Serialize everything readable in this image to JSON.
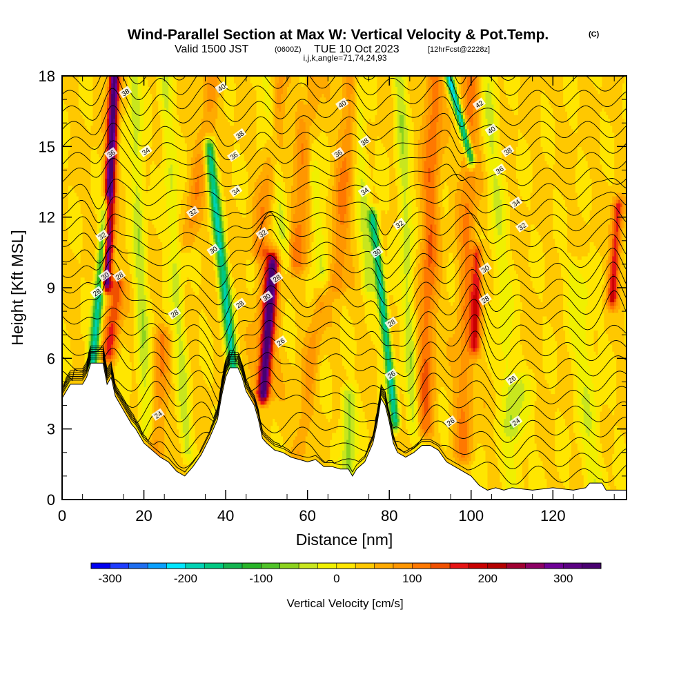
{
  "title": {
    "main": "Wind-Parallel Section at Max W: Vertical Velocity & Pot.Temp.",
    "copyright": "(C)",
    "valid_prefix": "Valid 1500 JST",
    "valid_utc": "(0600Z)",
    "valid_date": "TUE 10 Oct 2023",
    "forecast": "[12hrFcst@2228z]",
    "grid_info": "i,j,k,angle=71,74,24,93"
  },
  "colorbar": {
    "label": "Vertical Velocity [cm/s]",
    "min": -325,
    "max": 350,
    "step": 25,
    "tick_labels": [
      "-300",
      "-200",
      "-100",
      "0",
      "100",
      "200",
      "300"
    ],
    "tick_values": [
      -300,
      -200,
      -100,
      0,
      100,
      200,
      300
    ],
    "colors": [
      "#0000f0",
      "#1e3cff",
      "#1e6ef0",
      "#0aa0ff",
      "#00e6ff",
      "#00d2b4",
      "#00c882",
      "#14b450",
      "#28b428",
      "#50c328",
      "#8cd21e",
      "#c8e61e",
      "#f0f000",
      "#ffe600",
      "#ffc800",
      "#ffaa00",
      "#ff9600",
      "#ff7800",
      "#f05000",
      "#e61414",
      "#c80000",
      "#b40000",
      "#a00032",
      "#8c0064",
      "#6e0096",
      "#5a0082",
      "#480070"
    ]
  },
  "chart_data": {
    "type": "heatmap",
    "title": "Wind-Parallel Section at Max W: Vertical Velocity & Pot.Temp.",
    "xlabel": "Distance [nm]",
    "ylabel": "Height [Kft MSL]",
    "xlim": [
      0,
      138
    ],
    "ylim": [
      0,
      18
    ],
    "x_ticks": [
      0,
      20,
      40,
      60,
      80,
      100,
      120
    ],
    "x_tick_labels": [
      "0",
      "20",
      "40",
      "60",
      "80",
      "100",
      "120"
    ],
    "y_ticks": [
      0,
      3,
      6,
      9,
      12,
      15,
      18
    ],
    "y_tick_labels": [
      "0",
      "3",
      "6",
      "9",
      "12",
      "15",
      "18"
    ],
    "fill_variable": "Vertical Velocity [cm/s]",
    "contour_variable": "Pot.Temp.",
    "background_w": 30,
    "terrain": [
      [
        0,
        4.3
      ],
      [
        2,
        4.9
      ],
      [
        5,
        4.9
      ],
      [
        6,
        5.2
      ],
      [
        7,
        5.8
      ],
      [
        8,
        5.8
      ],
      [
        10,
        5.8
      ],
      [
        11,
        4.9
      ],
      [
        12,
        5.2
      ],
      [
        13,
        4.4
      ],
      [
        15,
        3.8
      ],
      [
        17,
        3.2
      ],
      [
        18,
        3.0
      ],
      [
        19,
        2.7
      ],
      [
        20,
        2.4
      ],
      [
        22,
        2.1
      ],
      [
        24,
        1.8
      ],
      [
        26,
        1.6
      ],
      [
        28,
        1.2
      ],
      [
        30,
        1.0
      ],
      [
        32,
        1.4
      ],
      [
        34,
        1.9
      ],
      [
        36,
        2.6
      ],
      [
        38,
        3.4
      ],
      [
        39,
        4.4
      ],
      [
        40,
        5.2
      ],
      [
        41,
        5.6
      ],
      [
        43,
        5.6
      ],
      [
        44,
        5.2
      ],
      [
        45,
        4.6
      ],
      [
        47,
        4.0
      ],
      [
        48,
        3.4
      ],
      [
        49,
        2.6
      ],
      [
        50,
        2.4
      ],
      [
        52,
        2.1
      ],
      [
        54,
        2.0
      ],
      [
        56,
        1.8
      ],
      [
        58,
        1.7
      ],
      [
        60,
        1.6
      ],
      [
        62,
        1.7
      ],
      [
        64,
        1.4
      ],
      [
        66,
        1.4
      ],
      [
        68,
        1.3
      ],
      [
        70,
        1.3
      ],
      [
        71,
        1.0
      ],
      [
        72,
        1.3
      ],
      [
        74,
        1.6
      ],
      [
        76,
        2.4
      ],
      [
        77,
        3.2
      ],
      [
        78,
        4.3
      ],
      [
        79,
        4.0
      ],
      [
        80,
        3.3
      ],
      [
        81,
        2.4
      ],
      [
        82,
        2.0
      ],
      [
        84,
        1.8
      ],
      [
        86,
        2.0
      ],
      [
        88,
        2.3
      ],
      [
        90,
        2.3
      ],
      [
        92,
        2.1
      ],
      [
        94,
        1.6
      ],
      [
        96,
        1.4
      ],
      [
        98,
        1.2
      ],
      [
        100,
        1.0
      ],
      [
        102,
        0.6
      ],
      [
        104,
        0.4
      ],
      [
        106,
        0.5
      ],
      [
        108,
        0.4
      ],
      [
        110,
        0.5
      ],
      [
        115,
        0.4
      ],
      [
        120,
        0.5
      ],
      [
        125,
        0.4
      ],
      [
        128,
        0.5
      ],
      [
        129,
        0.7
      ],
      [
        132,
        0.7
      ],
      [
        133,
        0.4
      ],
      [
        138,
        0.4
      ]
    ],
    "updrafts": [
      {
        "x0": 10.8,
        "x1": 12.8,
        "width": 1.2,
        "amp": 330,
        "hmin": 9.2,
        "hmax": 18
      },
      {
        "x0": 11.5,
        "x1": 13.5,
        "width": 1.8,
        "amp": 120,
        "hmin": 6.2,
        "hmax": 9.2
      },
      {
        "x0": 49.2,
        "x1": 51.5,
        "width": 1.2,
        "amp": 260,
        "hmin": 4.5,
        "hmax": 10.0
      },
      {
        "x0": 49.2,
        "x1": 51.0,
        "width": 2.6,
        "amp": 90,
        "hmin": 4.5,
        "hmax": 10.5
      },
      {
        "x0": 101.0,
        "x1": 101.6,
        "width": 1.3,
        "amp": 120,
        "hmin": 6.5,
        "hmax": 10.5
      },
      {
        "x0": 57.5,
        "x1": 60.5,
        "width": 2.4,
        "amp": 80,
        "hmin": 10.0,
        "hmax": 18
      },
      {
        "x0": 88.5,
        "x1": 91.0,
        "width": 2.2,
        "amp": 90,
        "hmin": 3.0,
        "hmax": 18
      },
      {
        "x0": 67.0,
        "x1": 71.0,
        "width": 2.2,
        "amp": 70,
        "hmin": 9.0,
        "hmax": 18
      },
      {
        "x0": 48.0,
        "x1": 54.0,
        "width": 2.2,
        "amp": 60,
        "hmin": 10.5,
        "hmax": 18
      },
      {
        "x0": 31.0,
        "x1": 37.0,
        "width": 2.0,
        "amp": 55,
        "hmin": 11.0,
        "hmax": 18
      },
      {
        "x0": 98.0,
        "x1": 100.0,
        "width": 2.2,
        "amp": 70,
        "hmin": 2.0,
        "hmax": 18
      },
      {
        "x0": 23.0,
        "x1": 24.5,
        "width": 2.0,
        "amp": 60,
        "hmin": 1.5,
        "hmax": 7.0
      },
      {
        "x0": 134.5,
        "x1": 136.0,
        "width": 1.3,
        "amp": 140,
        "hmin": 8.5,
        "hmax": 12.5
      },
      {
        "x0": 58.0,
        "x1": 63.5,
        "width": 1.8,
        "amp": 50,
        "hmin": 2.0,
        "hmax": 9.0
      }
    ],
    "downdrafts": [
      {
        "x0": 7.5,
        "x1": 11.0,
        "width": 1.2,
        "amp": -210,
        "hmin": 5.8,
        "hmax": 12.5
      },
      {
        "x0": 42.5,
        "x1": 36.0,
        "width": 1.3,
        "amp": -200,
        "hmin": 4.5,
        "hmax": 15.0
      },
      {
        "x0": 81.5,
        "x1": 76.0,
        "width": 1.1,
        "amp": -210,
        "hmin": 3.3,
        "hmax": 12.0
      },
      {
        "x0": 100.0,
        "x1": 94.5,
        "width": 1.0,
        "amp": -230,
        "hmin": 14.5,
        "hmax": 18
      },
      {
        "x0": 20.5,
        "x1": 17.5,
        "width": 1.6,
        "amp": -70,
        "hmin": 3.0,
        "hmax": 18
      },
      {
        "x0": 30.5,
        "x1": 25.0,
        "width": 1.6,
        "amp": -60,
        "hmin": 2.0,
        "hmax": 18
      },
      {
        "x0": 55.0,
        "x1": 50.0,
        "width": 1.6,
        "amp": -60,
        "hmin": 10.0,
        "hmax": 18
      },
      {
        "x0": 64.0,
        "x1": 59.0,
        "width": 1.6,
        "amp": -65,
        "hmin": 9.0,
        "hmax": 18
      },
      {
        "x0": 75.0,
        "x1": 72.0,
        "width": 1.6,
        "amp": -60,
        "hmin": 9.0,
        "hmax": 18
      },
      {
        "x0": 86.0,
        "x1": 82.5,
        "width": 1.6,
        "amp": -70,
        "hmin": 3.0,
        "hmax": 18
      },
      {
        "x0": 110.0,
        "x1": 104.0,
        "width": 2.0,
        "amp": -50,
        "hmin": 3.0,
        "hmax": 18
      },
      {
        "x0": 110.0,
        "x1": 112.0,
        "width": 3.0,
        "amp": -40,
        "hmin": 0.5,
        "hmax": 5.0
      },
      {
        "x0": 70.0,
        "x1": 70.0,
        "width": 1.8,
        "amp": -90,
        "hmin": 1.2,
        "hmax": 4.5
      },
      {
        "x0": 130.0,
        "x1": 126.0,
        "width": 3.0,
        "amp": -45,
        "hmin": 0.5,
        "hmax": 10.0
      }
    ],
    "theta_levels": [
      24,
      26,
      28,
      30,
      32,
      34,
      36,
      38,
      40,
      42
    ],
    "theta_base_heights": {
      "24": 2.0,
      "26": 5.1,
      "28": 7.9,
      "30": 10.0,
      "32": 11.6,
      "34": 13.2,
      "36": 14.7,
      "38": 15.9,
      "40": 16.9,
      "42": 17.9
    },
    "contour_labels": [
      {
        "text": "38",
        "x": 15.5,
        "y": 17.3
      },
      {
        "text": "36",
        "x": 12.0,
        "y": 14.7
      },
      {
        "text": "34",
        "x": 20.5,
        "y": 14.8
      },
      {
        "text": "32",
        "x": 9.8,
        "y": 11.2
      },
      {
        "text": "32",
        "x": 32.0,
        "y": 12.2
      },
      {
        "text": "30",
        "x": 10.5,
        "y": 9.5
      },
      {
        "text": "28",
        "x": 14.0,
        "y": 9.5
      },
      {
        "text": "28",
        "x": 8.5,
        "y": 8.8
      },
      {
        "text": "28",
        "x": 27.5,
        "y": 7.9
      },
      {
        "text": "30",
        "x": 37.0,
        "y": 10.6
      },
      {
        "text": "24",
        "x": 23.5,
        "y": 3.6
      },
      {
        "text": "40",
        "x": 39.0,
        "y": 17.5
      },
      {
        "text": "38",
        "x": 43.5,
        "y": 15.5
      },
      {
        "text": "36",
        "x": 42.0,
        "y": 14.6
      },
      {
        "text": "34",
        "x": 42.5,
        "y": 13.1
      },
      {
        "text": "32",
        "x": 49.0,
        "y": 11.3
      },
      {
        "text": "28",
        "x": 43.5,
        "y": 8.3
      },
      {
        "text": "30",
        "x": 50.0,
        "y": 8.6
      },
      {
        "text": "28",
        "x": 52.5,
        "y": 9.4
      },
      {
        "text": "26",
        "x": 53.5,
        "y": 6.7
      },
      {
        "text": "40",
        "x": 68.5,
        "y": 16.8
      },
      {
        "text": "38",
        "x": 74.0,
        "y": 15.2
      },
      {
        "text": "36",
        "x": 67.5,
        "y": 14.7
      },
      {
        "text": "34",
        "x": 74.0,
        "y": 13.1
      },
      {
        "text": "32",
        "x": 82.5,
        "y": 11.7
      },
      {
        "text": "30",
        "x": 77.0,
        "y": 10.5
      },
      {
        "text": "28",
        "x": 80.5,
        "y": 7.5
      },
      {
        "text": "26",
        "x": 80.5,
        "y": 5.3
      },
      {
        "text": "26",
        "x": 95.0,
        "y": 3.3
      },
      {
        "text": "42",
        "x": 102.0,
        "y": 16.8
      },
      {
        "text": "40",
        "x": 105.0,
        "y": 15.7
      },
      {
        "text": "38",
        "x": 109.0,
        "y": 14.8
      },
      {
        "text": "36",
        "x": 107.0,
        "y": 14.0
      },
      {
        "text": "34",
        "x": 111.0,
        "y": 12.6
      },
      {
        "text": "32",
        "x": 112.5,
        "y": 11.6
      },
      {
        "text": "30",
        "x": 103.5,
        "y": 9.8
      },
      {
        "text": "28",
        "x": 103.5,
        "y": 8.5
      },
      {
        "text": "26",
        "x": 110.0,
        "y": 5.1
      },
      {
        "text": "24",
        "x": 111.0,
        "y": 3.3
      }
    ],
    "grid": false,
    "legend": "bottom colorbar"
  }
}
